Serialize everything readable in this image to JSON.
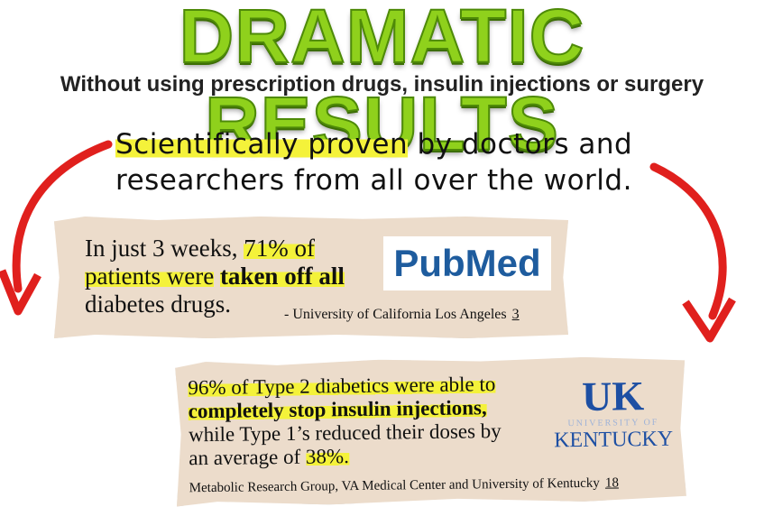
{
  "header": {
    "title": "DRAMATIC RESULTS",
    "subtitle": "Without using prescription drugs, insulin injections or surgery"
  },
  "tagline": {
    "highlight": "Scientifically proven",
    "rest": "by doctors and researchers from all over the world."
  },
  "cards": [
    {
      "lines": [
        "In just 3 weeks,",
        "71% of",
        "patients were",
        "taken off all",
        "diabetes drugs."
      ],
      "logo": {
        "part1": "Pub",
        "part2": "Med"
      },
      "citation": "- University of California Los Angeles",
      "ref": "3"
    },
    {
      "lines": [
        "96% of Type 2 diabetics were able to",
        "completely stop insulin injections,",
        "while Type 1’s reduced their doses by",
        "an average of",
        "38%."
      ],
      "logo": {
        "mark": "UK",
        "university": "UNIVERSITY OF",
        "name": "KENTUCKY"
      },
      "citation": "Metabolic Research Group, VA Medical Center and University of Kentucky",
      "ref": "18"
    }
  ]
}
